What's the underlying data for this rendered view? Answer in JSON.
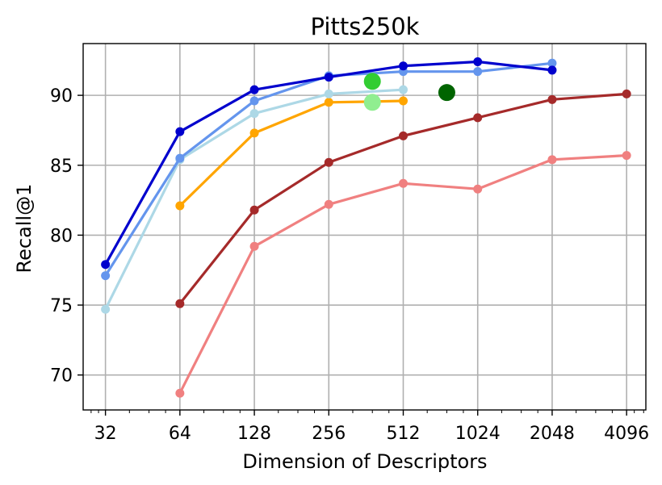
{
  "chart_data": {
    "type": "line",
    "title": "Pitts250k",
    "xlabel": "Dimension of Descriptors",
    "ylabel": "Recall@1",
    "xscale": "log2",
    "xlim": [
      26,
      4900
    ],
    "ylim": [
      67.5,
      93.7
    ],
    "xticks": [
      32,
      64,
      128,
      256,
      512,
      1024,
      2048,
      4096
    ],
    "xtick_labels": [
      "32",
      "64",
      "128",
      "256",
      "512",
      "1024",
      "2048",
      "4096"
    ],
    "yticks": [
      70,
      75,
      80,
      85,
      90
    ],
    "ytick_labels": [
      "70",
      "75",
      "80",
      "85",
      "90"
    ],
    "grid": true,
    "series": [
      {
        "name": "series-lightcoral",
        "color": "#f08080",
        "x": [
          64,
          128,
          256,
          512,
          1024,
          2048,
          4096
        ],
        "y": [
          68.7,
          79.2,
          82.2,
          83.7,
          83.3,
          85.4,
          85.7
        ]
      },
      {
        "name": "series-brown",
        "color": "#a52a2a",
        "x": [
          64,
          128,
          256,
          512,
          1024,
          2048,
          4096
        ],
        "y": [
          75.1,
          81.8,
          85.2,
          87.1,
          88.4,
          89.7,
          90.1
        ]
      },
      {
        "name": "series-orange",
        "color": "#ffa500",
        "x": [
          64,
          128,
          256,
          384,
          512
        ],
        "y": [
          82.1,
          87.3,
          89.5,
          89.55,
          89.6
        ]
      },
      {
        "name": "series-lightblue",
        "color": "#add8e6",
        "x": [
          32,
          64,
          128,
          256,
          512
        ],
        "y": [
          74.7,
          85.4,
          88.7,
          90.1,
          90.4
        ]
      },
      {
        "name": "series-cornflowerblue",
        "color": "#6495ed",
        "x": [
          32,
          64,
          128,
          256,
          512,
          1024,
          2048
        ],
        "y": [
          77.1,
          85.5,
          89.6,
          91.4,
          91.7,
          91.7,
          92.3
        ]
      },
      {
        "name": "series-mediumblue",
        "color": "#0000cd",
        "x": [
          32,
          64,
          128,
          256,
          512,
          1024,
          2048
        ],
        "y": [
          77.9,
          87.4,
          90.4,
          91.3,
          92.1,
          92.4,
          91.8
        ]
      }
    ],
    "single_points": [
      {
        "name": "point-limegreen",
        "color": "#32cd32",
        "x": 384,
        "y": 91.0
      },
      {
        "name": "point-lightgreen",
        "color": "#90ee90",
        "x": 384,
        "y": 89.5
      },
      {
        "name": "point-darkgreen",
        "color": "#006400",
        "x": 768,
        "y": 90.2
      }
    ]
  }
}
